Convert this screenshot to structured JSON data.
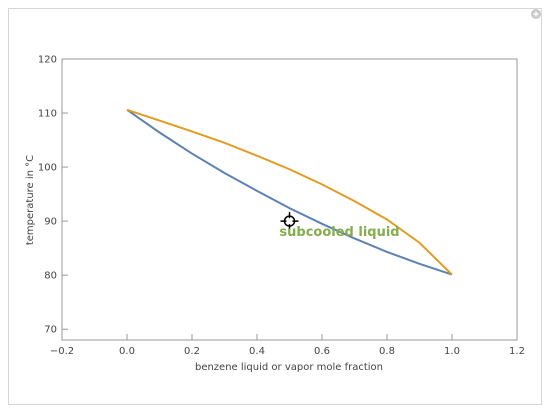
{
  "chart_data": {
    "type": "line",
    "x_label": "benzene liquid or vapor mole fraction",
    "y_label": "temperature in °C",
    "annotation": "subcooled liquid",
    "x": [
      0,
      0.1,
      0.2,
      0.3,
      0.4,
      0.5,
      0.6,
      0.7,
      0.8,
      0.9,
      1.0
    ],
    "series": [
      {
        "color": "#5d81b4",
        "values": [
          110.6,
          106.4,
          102.5,
          98.9,
          95.6,
          92.4,
          89.5,
          86.8,
          84.3,
          82.1,
          80.1
        ]
      },
      {
        "color": "#e19c24",
        "values": [
          110.6,
          108.6,
          106.6,
          104.5,
          102.1,
          99.6,
          96.8,
          93.7,
          90.3,
          86.0,
          80.1
        ]
      }
    ],
    "point": {
      "x": 0.5,
      "y": 90
    },
    "xlim": [
      -0.2,
      1.2
    ],
    "ylim": [
      68,
      120
    ],
    "xticks": [
      {
        "value": -0.2,
        "label": "−0.2"
      },
      {
        "value": 0,
        "label": "0.0"
      },
      0.2,
      0.4,
      0.6,
      0.8,
      {
        "value": 1.0,
        "label": "1.0"
      },
      1.2
    ],
    "yticks": [
      70,
      80,
      90,
      100,
      110,
      120
    ]
  }
}
